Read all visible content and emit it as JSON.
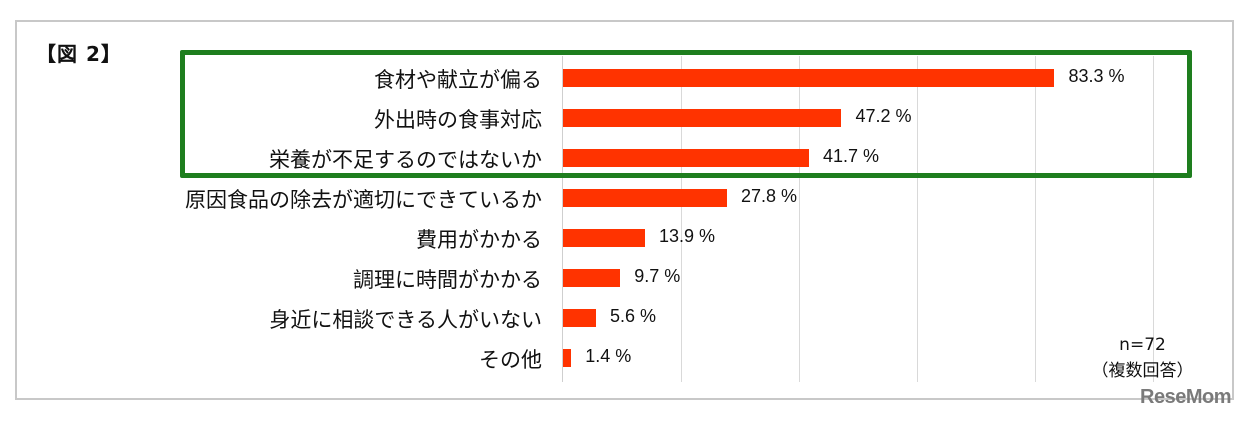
{
  "figure": {
    "title": "【図 2】",
    "note_n": "n=72",
    "note_type": "（複数回答）",
    "watermark": "ReseMom",
    "bar_color": "#ff3300",
    "highlight_color": "#1e7e1e"
  },
  "rows": [
    {
      "label": "食材や献立が偏る",
      "value": 83.3,
      "value_label": "83.3 %"
    },
    {
      "label": "外出時の食事対応",
      "value": 47.2,
      "value_label": "47.2 %"
    },
    {
      "label": "栄養が不足するのではないか",
      "value": 41.7,
      "value_label": "41.7 %"
    },
    {
      "label": "原因食品の除去が適切にできているか",
      "value": 27.8,
      "value_label": "27.8 %"
    },
    {
      "label": "費用がかかる",
      "value": 13.9,
      "value_label": "13.9 %"
    },
    {
      "label": "調理に時間がかかる",
      "value": 9.7,
      "value_label": "9.7 %"
    },
    {
      "label": "身近に相談できる人がいない",
      "value": 5.6,
      "value_label": "5.6 %"
    },
    {
      "label": "その他",
      "value": 1.4,
      "value_label": "1.4 %"
    }
  ],
  "chart_data": {
    "type": "bar",
    "orientation": "horizontal",
    "title": "【図 2】",
    "categories": [
      "食材や献立が偏る",
      "外出時の食事対応",
      "栄養が不足するのではないか",
      "原因食品の除去が適切にできているか",
      "費用がかかる",
      "調理に時間がかかる",
      "身近に相談できる人がいない",
      "その他"
    ],
    "values": [
      83.3,
      47.2,
      41.7,
      27.8,
      13.9,
      9.7,
      5.6,
      1.4
    ],
    "unit": "%",
    "xlabel": "",
    "ylabel": "",
    "xlim": [
      0,
      100
    ],
    "gridlines": [
      0,
      20,
      40,
      60,
      80,
      100
    ],
    "grid": true,
    "annotations": [
      "n=72",
      "（複数回答）"
    ],
    "highlighted_categories": [
      "食材や献立が偏る",
      "外出時の食事対応",
      "栄養が不足するのではないか"
    ]
  }
}
